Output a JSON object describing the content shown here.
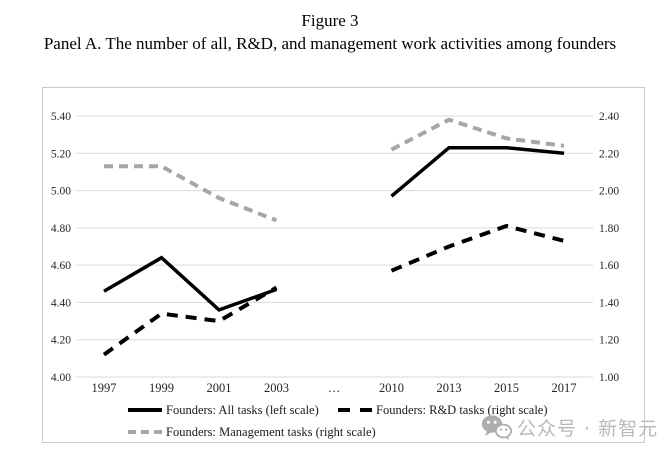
{
  "figure": {
    "title": "Figure 3",
    "subtitle": "Panel A. The number of all, R&D, and management work activities among founders"
  },
  "watermark": {
    "icon": "wechat-icon",
    "text": "公众号 · 新智元",
    "color": "#b9b9b9"
  },
  "chart_data": {
    "type": "line",
    "title": "",
    "categories": [
      "1997",
      "1999",
      "2001",
      "2003",
      "…",
      "2010",
      "2013",
      "2015",
      "2017"
    ],
    "left_axis": {
      "min": 4.0,
      "max": 5.4,
      "step": 0.2,
      "ticks": [
        "5.40",
        "5.20",
        "5.00",
        "4.80",
        "4.60",
        "4.40",
        "4.20",
        "4.00"
      ]
    },
    "right_axis": {
      "min": 1.0,
      "max": 2.4,
      "step": 0.2,
      "ticks": [
        "2.40",
        "2.20",
        "2.00",
        "1.80",
        "1.60",
        "1.40",
        "1.20",
        "1.00"
      ]
    },
    "grid": true,
    "legend_position": "bottom",
    "legend_rows": [
      [
        0,
        1
      ],
      [
        2
      ]
    ],
    "series": [
      {
        "name": "Founders: All tasks (left scale)",
        "axis": "left",
        "style": "solid",
        "color": "#000000",
        "values": [
          4.46,
          4.64,
          4.36,
          4.47,
          null,
          4.97,
          5.23,
          5.23,
          5.2
        ]
      },
      {
        "name": "Founders: R&D tasks (right scale)",
        "axis": "right",
        "style": "dashed",
        "color": "#000000",
        "values": [
          1.12,
          1.34,
          1.3,
          1.48,
          null,
          1.57,
          1.7,
          1.81,
          1.73
        ]
      },
      {
        "name": "Founders: Management tasks (right scale)",
        "axis": "right",
        "style": "dashed",
        "color": "#a6a6a6",
        "values": [
          2.13,
          2.13,
          1.96,
          1.84,
          null,
          2.22,
          2.38,
          2.28,
          2.24
        ]
      }
    ]
  }
}
